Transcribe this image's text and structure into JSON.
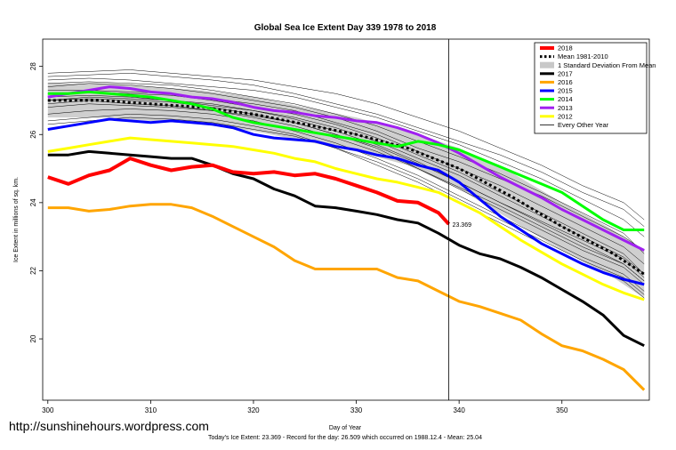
{
  "website": "http://sunshinehours.wordpress.com",
  "footer": "Today's Ice Extent: 23.369  - Record for the day: 26.509 which occurred on 1988.12.4  - Mean: 25.04",
  "chart_data": {
    "type": "line",
    "title": "Global Sea Ice Extent Day 339 1978 to 2018",
    "xlabel": "Day of Year",
    "ylabel": "Ice Extent in millions of sq. km.",
    "xlim": [
      299.5,
      358.5
    ],
    "ylim": [
      18.2,
      28.8
    ],
    "xticks": [
      300,
      310,
      320,
      330,
      340,
      350
    ],
    "yticks": [
      20,
      22,
      24,
      26,
      28
    ],
    "current_day": 339,
    "annotation": {
      "text": "23.369",
      "x": 339,
      "y": 23.37,
      "color": "#ff0000"
    },
    "legend": {
      "placement": "top-right",
      "entries": [
        {
          "label": "2018",
          "color": "#ff0000",
          "style": "thick"
        },
        {
          "label": "Mean 1981-2010",
          "color": "#000000",
          "style": "dotted"
        },
        {
          "label": "1 Standard Deviation From Mean",
          "color": "#c8c8c8",
          "style": "band"
        },
        {
          "label": "2017",
          "color": "#000000",
          "style": "thick"
        },
        {
          "label": "2016",
          "color": "#ffa500",
          "style": "thick"
        },
        {
          "label": "2015",
          "color": "#0000ff",
          "style": "thick"
        },
        {
          "label": "2014",
          "color": "#00ff00",
          "style": "thick"
        },
        {
          "label": "2013",
          "color": "#a020f0",
          "style": "thick"
        },
        {
          "label": "2012",
          "color": "#ffff00",
          "style": "thick"
        },
        {
          "label": "Every Other Year",
          "color": "#000000",
          "style": "thin"
        }
      ]
    },
    "mean": {
      "x": [
        300,
        305,
        310,
        315,
        320,
        325,
        330,
        335,
        340,
        345,
        350,
        355,
        358
      ],
      "y": [
        27.0,
        27.0,
        26.9,
        26.8,
        26.6,
        26.3,
        26.0,
        25.6,
        25.0,
        24.2,
        23.3,
        22.5,
        21.9
      ]
    },
    "std_band": {
      "x": [
        300,
        305,
        310,
        315,
        320,
        325,
        330,
        335,
        340,
        345,
        350,
        355,
        358
      ],
      "upper": [
        27.5,
        27.5,
        27.4,
        27.3,
        27.1,
        26.8,
        26.5,
        26.1,
        25.6,
        24.9,
        24.0,
        23.2,
        22.6
      ],
      "lower": [
        26.5,
        26.5,
        26.4,
        26.3,
        26.1,
        25.8,
        25.5,
        25.1,
        24.4,
        23.5,
        22.6,
        21.8,
        21.2
      ]
    },
    "series": [
      {
        "name": "2018",
        "color": "#ff0000",
        "width": 4,
        "x": [
          300,
          302,
          304,
          306,
          308,
          310,
          312,
          314,
          316,
          318,
          320,
          322,
          324,
          326,
          328,
          330,
          332,
          334,
          336,
          338,
          339
        ],
        "y": [
          24.75,
          24.55,
          24.8,
          24.95,
          25.3,
          25.1,
          24.95,
          25.05,
          25.1,
          24.9,
          24.85,
          24.9,
          24.8,
          24.85,
          24.7,
          24.5,
          24.3,
          24.05,
          24.0,
          23.7,
          23.37
        ]
      },
      {
        "name": "2017",
        "color": "#000000",
        "width": 3,
        "x": [
          300,
          302,
          304,
          306,
          308,
          310,
          312,
          314,
          316,
          318,
          320,
          322,
          324,
          326,
          328,
          330,
          332,
          334,
          336,
          338,
          340,
          342,
          344,
          346,
          348,
          350,
          352,
          354,
          356,
          358
        ],
        "y": [
          25.4,
          25.4,
          25.5,
          25.45,
          25.4,
          25.35,
          25.3,
          25.3,
          25.1,
          24.85,
          24.7,
          24.4,
          24.2,
          23.9,
          23.85,
          23.75,
          23.65,
          23.5,
          23.4,
          23.1,
          22.75,
          22.5,
          22.35,
          22.1,
          21.8,
          21.45,
          21.1,
          20.7,
          20.1,
          19.8
        ]
      },
      {
        "name": "2016",
        "color": "#ffa500",
        "width": 3,
        "x": [
          300,
          302,
          304,
          306,
          308,
          310,
          312,
          314,
          316,
          318,
          320,
          322,
          324,
          326,
          328,
          330,
          332,
          334,
          336,
          338,
          340,
          342,
          344,
          346,
          348,
          350,
          352,
          354,
          356,
          358
        ],
        "y": [
          23.85,
          23.85,
          23.75,
          23.8,
          23.9,
          23.95,
          23.95,
          23.85,
          23.6,
          23.3,
          23.0,
          22.7,
          22.3,
          22.05,
          22.05,
          22.05,
          22.05,
          21.8,
          21.7,
          21.4,
          21.1,
          20.95,
          20.75,
          20.55,
          20.15,
          19.8,
          19.65,
          19.4,
          19.1,
          18.5
        ]
      },
      {
        "name": "2015",
        "color": "#0000ff",
        "width": 3,
        "x": [
          300,
          302,
          304,
          306,
          308,
          310,
          312,
          314,
          316,
          318,
          320,
          322,
          324,
          326,
          328,
          330,
          332,
          334,
          336,
          338,
          340,
          342,
          344,
          346,
          348,
          350,
          352,
          354,
          356,
          358
        ],
        "y": [
          26.15,
          26.25,
          26.35,
          26.45,
          26.4,
          26.35,
          26.4,
          26.35,
          26.3,
          26.2,
          26.0,
          25.9,
          25.85,
          25.8,
          25.65,
          25.55,
          25.4,
          25.3,
          25.1,
          24.95,
          24.6,
          24.1,
          23.6,
          23.2,
          22.8,
          22.5,
          22.2,
          21.95,
          21.75,
          21.6
        ]
      },
      {
        "name": "2014",
        "color": "#00ff00",
        "width": 3,
        "x": [
          300,
          302,
          304,
          306,
          308,
          310,
          312,
          314,
          316,
          318,
          320,
          322,
          324,
          326,
          328,
          330,
          332,
          334,
          336,
          338,
          340,
          342,
          344,
          346,
          348,
          350,
          352,
          354,
          356,
          358
        ],
        "y": [
          27.2,
          27.2,
          27.25,
          27.2,
          27.15,
          27.1,
          27.0,
          26.9,
          26.75,
          26.5,
          26.35,
          26.25,
          26.15,
          26.05,
          25.95,
          25.85,
          25.75,
          25.65,
          25.8,
          25.7,
          25.55,
          25.3,
          25.05,
          24.8,
          24.55,
          24.3,
          23.9,
          23.5,
          23.2,
          23.2
        ]
      },
      {
        "name": "2013",
        "color": "#a020f0",
        "width": 3,
        "x": [
          300,
          302,
          304,
          306,
          308,
          310,
          312,
          314,
          316,
          318,
          320,
          322,
          324,
          326,
          328,
          330,
          332,
          334,
          336,
          338,
          340,
          342,
          344,
          346,
          348,
          350,
          352,
          354,
          356,
          358
        ],
        "y": [
          27.1,
          27.2,
          27.3,
          27.4,
          27.35,
          27.25,
          27.2,
          27.1,
          27.05,
          26.95,
          26.8,
          26.7,
          26.65,
          26.55,
          26.5,
          26.4,
          26.35,
          26.2,
          26.0,
          25.75,
          25.45,
          25.1,
          24.75,
          24.45,
          24.15,
          23.8,
          23.5,
          23.2,
          22.9,
          22.6
        ]
      },
      {
        "name": "2012",
        "color": "#ffff00",
        "width": 3,
        "x": [
          300,
          302,
          304,
          306,
          308,
          310,
          312,
          314,
          316,
          318,
          320,
          322,
          324,
          326,
          328,
          330,
          332,
          334,
          336,
          338,
          340,
          342,
          344,
          346,
          348,
          350,
          352,
          354,
          356,
          358
        ],
        "y": [
          25.5,
          25.6,
          25.7,
          25.8,
          25.9,
          25.85,
          25.8,
          25.75,
          25.7,
          25.65,
          25.55,
          25.45,
          25.3,
          25.2,
          25.0,
          24.85,
          24.7,
          24.6,
          24.45,
          24.3,
          24.0,
          23.7,
          23.3,
          22.9,
          22.55,
          22.2,
          21.9,
          21.6,
          21.35,
          21.15
        ]
      }
    ],
    "other_years": [
      {
        "y": [
          27.8,
          27.85,
          27.9,
          27.8,
          27.7,
          27.6,
          27.4,
          27.2,
          26.9,
          26.5,
          26.1,
          25.6,
          25.1,
          24.5,
          24.0,
          23.5
        ]
      },
      {
        "y": [
          27.6,
          27.65,
          27.6,
          27.5,
          27.4,
          27.3,
          27.1,
          26.8,
          26.5,
          26.1,
          25.7,
          25.2,
          24.7,
          24.1,
          23.5,
          23.0
        ]
      },
      {
        "y": [
          27.4,
          27.5,
          27.45,
          27.35,
          27.2,
          27.0,
          26.8,
          26.5,
          26.1,
          25.6,
          25.2,
          24.7,
          24.2,
          23.6,
          23.0,
          22.6
        ]
      },
      {
        "y": [
          27.2,
          27.25,
          27.2,
          27.15,
          27.0,
          26.8,
          26.6,
          26.3,
          25.9,
          25.4,
          24.9,
          24.3,
          23.7,
          23.1,
          22.5,
          21.9
        ]
      },
      {
        "y": [
          27.0,
          27.1,
          27.05,
          27.0,
          26.85,
          26.7,
          26.45,
          26.1,
          25.7,
          25.2,
          24.6,
          24.0,
          23.4,
          22.8,
          22.2,
          21.7
        ]
      },
      {
        "y": [
          26.8,
          26.9,
          26.85,
          26.8,
          26.7,
          26.5,
          26.25,
          25.9,
          25.5,
          25.0,
          24.4,
          23.8,
          23.2,
          22.6,
          22.1,
          21.6
        ]
      },
      {
        "y": [
          26.6,
          26.7,
          26.75,
          26.7,
          26.6,
          26.4,
          26.1,
          25.75,
          25.3,
          24.8,
          24.2,
          23.6,
          23.0,
          22.4,
          21.9,
          21.4
        ]
      },
      {
        "y": [
          26.4,
          26.5,
          26.6,
          26.55,
          26.45,
          26.25,
          26.0,
          25.6,
          25.1,
          24.6,
          24.0,
          23.4,
          22.8,
          22.2,
          21.7,
          21.2
        ]
      },
      {
        "y": [
          26.9,
          27.0,
          26.9,
          26.85,
          26.7,
          26.55,
          26.35,
          26.0,
          25.65,
          25.15,
          24.6,
          24.0,
          23.45,
          22.9,
          22.35,
          21.8
        ]
      },
      {
        "y": [
          27.1,
          27.15,
          27.1,
          27.0,
          26.9,
          26.7,
          26.5,
          26.2,
          25.8,
          25.3,
          24.8,
          24.2,
          23.6,
          23.0,
          22.4,
          21.9
        ]
      },
      {
        "y": [
          27.3,
          27.3,
          27.25,
          27.2,
          27.05,
          26.9,
          26.7,
          26.35,
          26.0,
          25.5,
          25.0,
          24.5,
          23.9,
          23.3,
          22.7,
          22.2
        ]
      },
      {
        "y": [
          27.7,
          27.75,
          27.8,
          27.7,
          27.6,
          27.45,
          27.2,
          26.9,
          26.6,
          26.2,
          25.8,
          25.4,
          24.9,
          24.3,
          23.8,
          23.3
        ]
      },
      {
        "y": [
          27.5,
          27.55,
          27.5,
          27.45,
          27.3,
          27.1,
          26.9,
          26.6,
          26.25,
          25.8,
          25.35,
          24.85,
          24.3,
          23.7,
          23.1,
          22.5
        ]
      },
      {
        "y": [
          26.3,
          26.4,
          26.5,
          26.45,
          26.35,
          26.15,
          25.95,
          25.6,
          25.2,
          24.7,
          24.1,
          23.5,
          22.9,
          22.3,
          21.8,
          21.3
        ]
      },
      {
        "y": [
          27.0,
          27.05,
          27.0,
          26.95,
          26.8,
          26.6,
          26.35,
          26.0,
          25.6,
          25.0,
          24.45,
          23.9,
          23.3,
          22.7,
          22.2,
          21.7
        ]
      }
    ],
    "other_years_x": [
      300,
      304,
      308,
      312,
      316,
      320,
      324,
      328,
      332,
      336,
      340,
      344,
      348,
      352,
      356,
      358
    ]
  }
}
